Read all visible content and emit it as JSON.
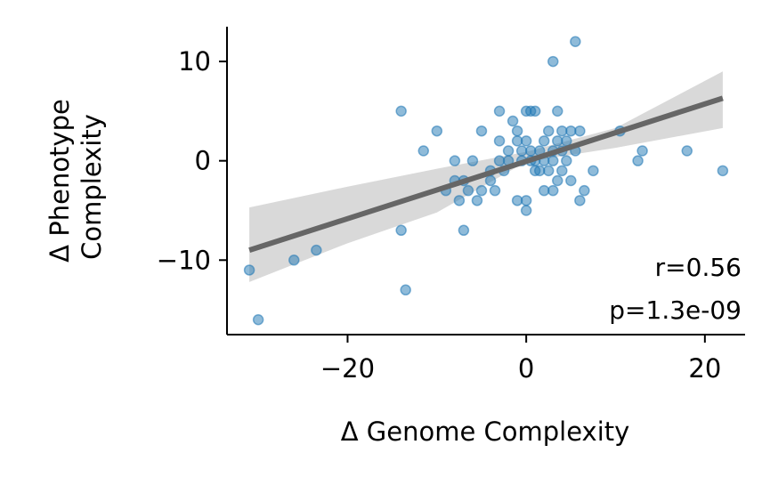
{
  "chart_data": {
    "type": "scatter",
    "xlabel": "Δ Genome Complexity",
    "ylabel": [
      "Δ Phenotype",
      "Complexity"
    ],
    "xlim": [
      -33.5,
      24.5
    ],
    "ylim": [
      -17.5,
      13.5
    ],
    "x_ticks": [
      -20,
      0,
      20
    ],
    "x_tick_labels": [
      "−20",
      "0",
      "20"
    ],
    "y_ticks": [
      -10,
      0,
      10
    ],
    "y_tick_labels": [
      "−10",
      "0",
      "10"
    ],
    "grid": false,
    "annotations": [
      "r=0.56",
      "p=1.3e-09"
    ],
    "colors": {
      "points": "#1f77b4",
      "fit_line": "#666666",
      "confidence_band": "#d9d9d9"
    },
    "fit_line": {
      "x": [
        -31,
        22
      ],
      "y": [
        -9,
        6.3
      ]
    },
    "confidence_band": {
      "x": [
        -31,
        -20,
        -10,
        0,
        10,
        22
      ],
      "upper": [
        -4.7,
        -2.6,
        -0.8,
        0.9,
        3.3,
        9.0
      ],
      "lower": [
        -12.2,
        -8.3,
        -5.2,
        -0.1,
        1.3,
        3.3
      ]
    },
    "points": [
      {
        "x": -31,
        "y": -11
      },
      {
        "x": -30,
        "y": -16
      },
      {
        "x": -26,
        "y": -10
      },
      {
        "x": -23.5,
        "y": -9
      },
      {
        "x": -14,
        "y": 5
      },
      {
        "x": -14,
        "y": -7
      },
      {
        "x": -13.5,
        "y": -13
      },
      {
        "x": -11.5,
        "y": 1
      },
      {
        "x": -10,
        "y": 3
      },
      {
        "x": -9,
        "y": -3
      },
      {
        "x": -8,
        "y": 0
      },
      {
        "x": -8,
        "y": -2
      },
      {
        "x": -7.5,
        "y": -4
      },
      {
        "x": -7,
        "y": -7
      },
      {
        "x": -7,
        "y": -2
      },
      {
        "x": -6.5,
        "y": -3
      },
      {
        "x": -6,
        "y": 0
      },
      {
        "x": -5.5,
        "y": -4
      },
      {
        "x": -5,
        "y": 3
      },
      {
        "x": -5,
        "y": -3
      },
      {
        "x": -4,
        "y": -1
      },
      {
        "x": -4,
        "y": -2
      },
      {
        "x": -3.5,
        "y": -3
      },
      {
        "x": -3,
        "y": 5
      },
      {
        "x": -3,
        "y": 2
      },
      {
        "x": -3,
        "y": 0
      },
      {
        "x": -2.5,
        "y": -1
      },
      {
        "x": -2,
        "y": 1
      },
      {
        "x": -2,
        "y": 0
      },
      {
        "x": -1.5,
        "y": 4
      },
      {
        "x": -1,
        "y": 3
      },
      {
        "x": -1,
        "y": 2
      },
      {
        "x": -1,
        "y": -4
      },
      {
        "x": -0.5,
        "y": 1
      },
      {
        "x": -0.5,
        "y": 0
      },
      {
        "x": 0,
        "y": 5
      },
      {
        "x": 0,
        "y": 2
      },
      {
        "x": 0,
        "y": -4
      },
      {
        "x": 0,
        "y": -5
      },
      {
        "x": 0.5,
        "y": 5
      },
      {
        "x": 0.5,
        "y": 1
      },
      {
        "x": 0.5,
        "y": 0
      },
      {
        "x": 1,
        "y": 5
      },
      {
        "x": 1,
        "y": -1
      },
      {
        "x": 1,
        "y": 0
      },
      {
        "x": 1.5,
        "y": 1
      },
      {
        "x": 1.5,
        "y": -1
      },
      {
        "x": 2,
        "y": 2
      },
      {
        "x": 2,
        "y": -3
      },
      {
        "x": 2,
        "y": 0
      },
      {
        "x": 2.5,
        "y": 3
      },
      {
        "x": 2.5,
        "y": -1
      },
      {
        "x": 3,
        "y": 10
      },
      {
        "x": 3,
        "y": 1
      },
      {
        "x": 3,
        "y": -3
      },
      {
        "x": 3,
        "y": 0
      },
      {
        "x": 3.5,
        "y": 5
      },
      {
        "x": 3.5,
        "y": 2
      },
      {
        "x": 3.5,
        "y": -2
      },
      {
        "x": 4,
        "y": 3
      },
      {
        "x": 4,
        "y": 1
      },
      {
        "x": 4,
        "y": -1
      },
      {
        "x": 4.5,
        "y": 2
      },
      {
        "x": 4.5,
        "y": 0
      },
      {
        "x": 5,
        "y": 3
      },
      {
        "x": 5,
        "y": -2
      },
      {
        "x": 5.5,
        "y": 12
      },
      {
        "x": 5.5,
        "y": 1
      },
      {
        "x": 6,
        "y": 3
      },
      {
        "x": 6,
        "y": -4
      },
      {
        "x": 6.5,
        "y": -3
      },
      {
        "x": 7.5,
        "y": -1
      },
      {
        "x": 10.5,
        "y": 3
      },
      {
        "x": 12.5,
        "y": 0
      },
      {
        "x": 13,
        "y": 1
      },
      {
        "x": 18,
        "y": 1
      },
      {
        "x": 22,
        "y": -1
      }
    ]
  }
}
